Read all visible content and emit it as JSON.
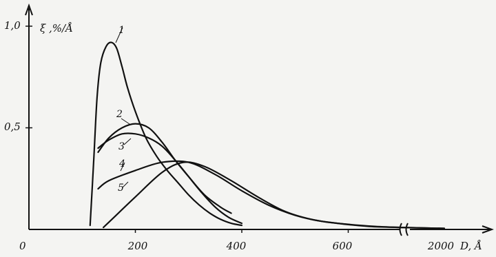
{
  "chart_data": {
    "type": "line",
    "ylabel": "ξ ,%/Å",
    "xlabel": "D, Å",
    "origin_label": "0",
    "x_ticks": [
      "200",
      "400",
      "600",
      "2000"
    ],
    "y_ticks": [
      "0,5",
      "1,0"
    ],
    "xlim": [
      0,
      2000
    ],
    "ylim": [
      0,
      1.0
    ],
    "x_axis_break": true,
    "grid": false,
    "series": [
      {
        "name": "1",
        "x": [
          115,
          122,
          128,
          135,
          145,
          155,
          165,
          175,
          185,
          200,
          220,
          240,
          260,
          280,
          300,
          320,
          340,
          360,
          380,
          400
        ],
        "y": [
          0.02,
          0.35,
          0.65,
          0.82,
          0.9,
          0.92,
          0.89,
          0.8,
          0.7,
          0.58,
          0.45,
          0.36,
          0.29,
          0.23,
          0.17,
          0.12,
          0.08,
          0.05,
          0.03,
          0.02
        ]
      },
      {
        "name": "2",
        "x": [
          130,
          150,
          175,
          200,
          225,
          250,
          275,
          300,
          330,
          360,
          380
        ],
        "y": [
          0.38,
          0.45,
          0.5,
          0.52,
          0.5,
          0.43,
          0.34,
          0.26,
          0.17,
          0.11,
          0.08
        ]
      },
      {
        "name": "3",
        "x": [
          130,
          150,
          175,
          200,
          225,
          250,
          275,
          300,
          325,
          350,
          375,
          400
        ],
        "y": [
          0.4,
          0.44,
          0.47,
          0.47,
          0.45,
          0.41,
          0.34,
          0.26,
          0.18,
          0.11,
          0.06,
          0.03
        ]
      },
      {
        "name": "4",
        "x": [
          130,
          150,
          200,
          250,
          300,
          350,
          400,
          450,
          500,
          550,
          600,
          650,
          700,
          2000
        ],
        "y": [
          0.2,
          0.24,
          0.29,
          0.33,
          0.33,
          0.27,
          0.19,
          0.12,
          0.07,
          0.04,
          0.025,
          0.015,
          0.01,
          0.005
        ]
      },
      {
        "name": "5",
        "x": [
          140,
          160,
          200,
          250,
          290,
          330,
          380,
          430,
          480,
          530,
          580,
          640,
          700,
          2000
        ],
        "y": [
          0.01,
          0.06,
          0.16,
          0.28,
          0.33,
          0.31,
          0.24,
          0.16,
          0.09,
          0.05,
          0.03,
          0.015,
          0.01,
          0.005
        ]
      }
    ]
  }
}
